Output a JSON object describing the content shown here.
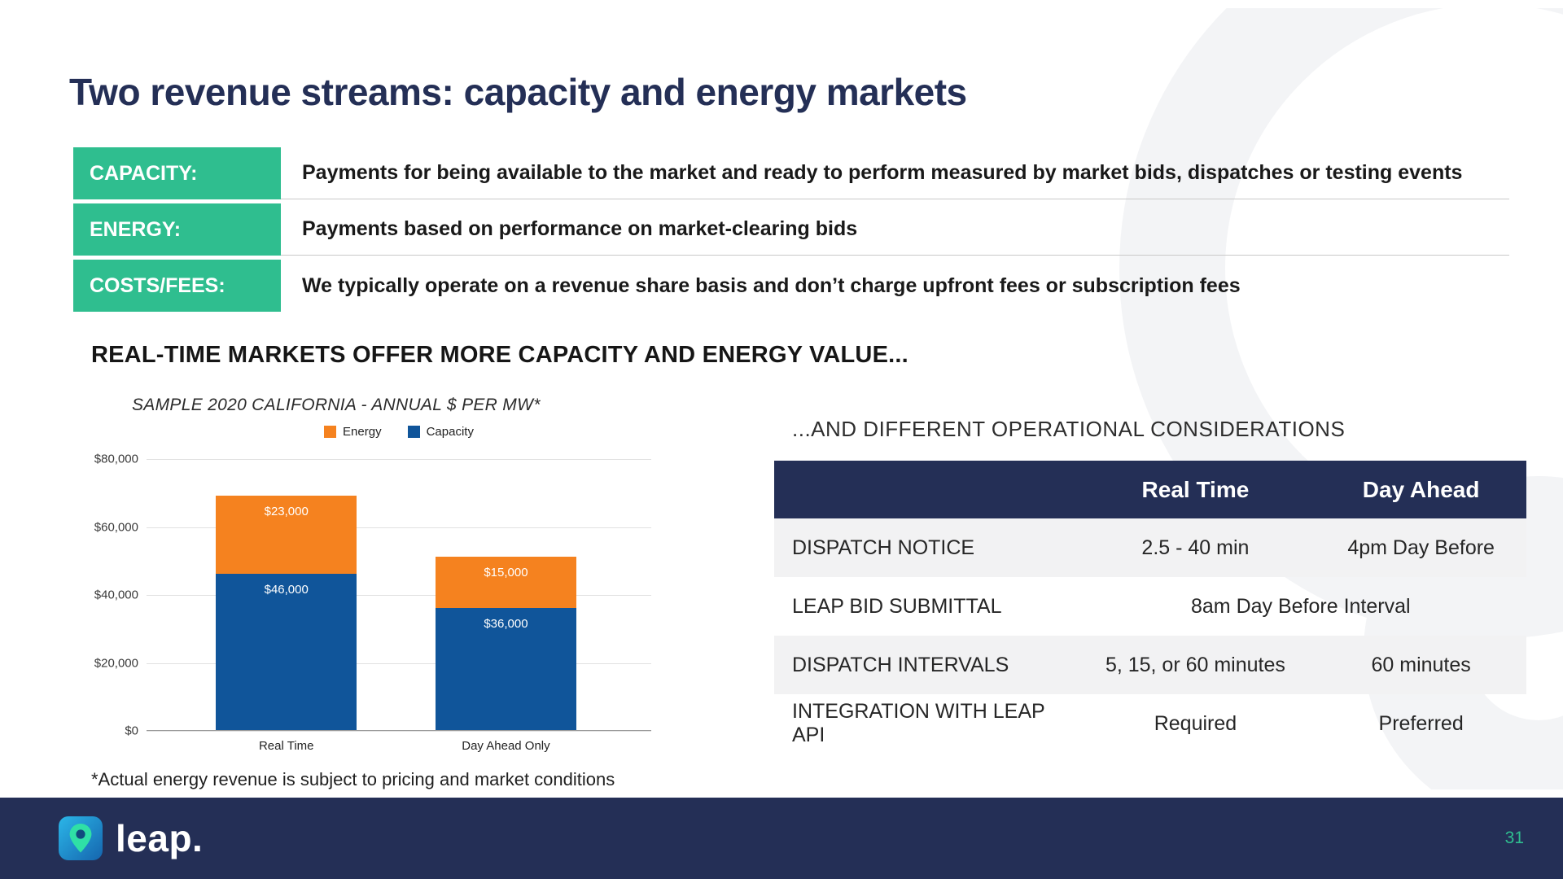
{
  "slide": {
    "title": "Two revenue streams: capacity and energy markets"
  },
  "definitions": [
    {
      "label": "CAPACITY:",
      "text": "Payments for being available to the market and ready to perform measured by market bids, dispatches or testing events"
    },
    {
      "label": "ENERGY:",
      "text": "Payments based on performance on market-clearing bids"
    },
    {
      "label": "COSTS/FEES:",
      "text": "We typically operate on a revenue share basis and don’t charge upfront fees or subscription fees"
    }
  ],
  "left_section": {
    "heading": "REAL-TIME MARKETS OFFER MORE CAPACITY AND ENERGY VALUE...",
    "footnote": "*Actual energy revenue is subject to pricing and market conditions"
  },
  "chart_data": {
    "type": "bar",
    "stacked": true,
    "title": "SAMPLE 2020 CALIFORNIA - ANNUAL $ PER MW*",
    "categories": [
      "Real Time",
      "Day Ahead Only"
    ],
    "series": [
      {
        "name": "Capacity",
        "color": "#10559A",
        "values": [
          46000,
          36000
        ],
        "labels": [
          "$46,000",
          "$36,000"
        ]
      },
      {
        "name": "Energy",
        "color": "#F5821F",
        "values": [
          23000,
          15000
        ],
        "labels": [
          "$23,000",
          "$15,000"
        ]
      }
    ],
    "legend": [
      {
        "name": "Energy",
        "color": "#F5821F"
      },
      {
        "name": "Capacity",
        "color": "#10559A"
      }
    ],
    "ylim": [
      0,
      80000
    ],
    "ytick_step": 20000,
    "ytick_labels": [
      "$0",
      "$20,000",
      "$40,000",
      "$60,000",
      "$80,000"
    ],
    "grid": true,
    "legend_position": "top"
  },
  "right_section": {
    "heading": "...AND DIFFERENT OPERATIONAL CONSIDERATIONS",
    "table": {
      "columns": [
        "",
        "Real Time",
        "Day Ahead"
      ],
      "rows": [
        {
          "label": "DISPATCH NOTICE",
          "real_time": "2.5 - 40 min",
          "day_ahead": "4pm Day Before"
        },
        {
          "label": "LEAP BID SUBMITTAL",
          "combined": "8am Day Before Interval"
        },
        {
          "label": "DISPATCH INTERVALS",
          "real_time": "5, 15, or 60 minutes",
          "day_ahead": "60 minutes"
        },
        {
          "label": "INTEGRATION WITH LEAP API",
          "real_time": "Required",
          "day_ahead": "Preferred"
        }
      ]
    }
  },
  "footer": {
    "logo_text": "leap.",
    "page_number": "31"
  },
  "colors": {
    "navy": "#242F56",
    "green": "#2FBE8F",
    "energy_orange": "#F5821F",
    "capacity_blue": "#10559A"
  }
}
